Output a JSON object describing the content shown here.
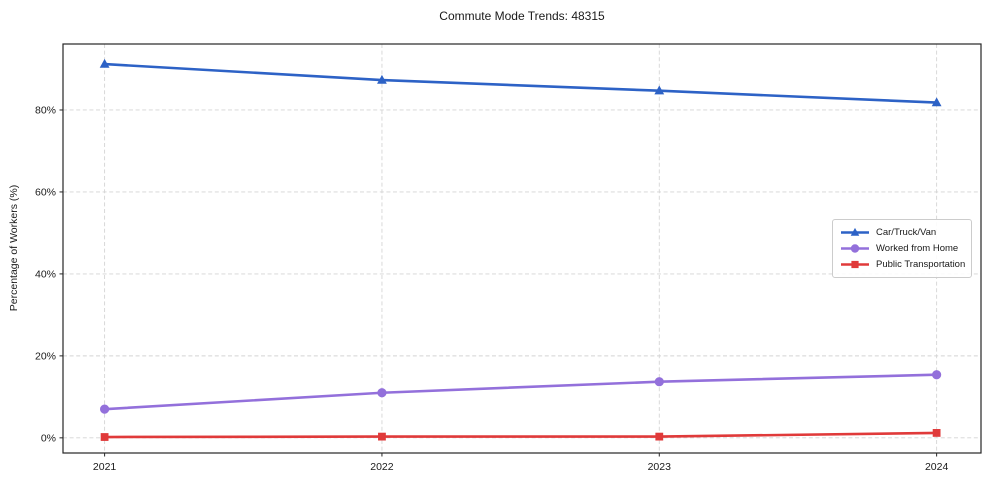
{
  "chart_data": {
    "type": "line",
    "title": "Commute Mode Trends: 48315",
    "xlabel": "",
    "ylabel": "Percentage of Workers (%)",
    "x": [
      2021,
      2022,
      2023,
      2024
    ],
    "xtick_labels": [
      "2021",
      "2022",
      "2023",
      "2024"
    ],
    "yticks": [
      0,
      20,
      40,
      60,
      80
    ],
    "ytick_labels": [
      "0%",
      "20%",
      "40%",
      "60%",
      "80%"
    ],
    "xlim": [
      2020.85,
      2024.16
    ],
    "ylim": [
      -3.7,
      96.1
    ],
    "grid": true,
    "legend_position": "center-right",
    "series": [
      {
        "name": "Car/Truck/Van",
        "color": "#2d62c6",
        "marker": "triangle",
        "values": [
          91.2,
          87.3,
          84.7,
          81.8
        ]
      },
      {
        "name": "Worked from Home",
        "color": "#9370db",
        "marker": "circle",
        "values": [
          7.0,
          11.0,
          13.7,
          15.4
        ]
      },
      {
        "name": "Public Transportation",
        "color": "#e03a3a",
        "marker": "square",
        "values": [
          0.2,
          0.3,
          0.3,
          1.2
        ]
      }
    ],
    "colors": {
      "axis": "#262626",
      "grid": "#d4d4d4",
      "text": "#1a1a1a",
      "background": "#ffffff"
    }
  }
}
